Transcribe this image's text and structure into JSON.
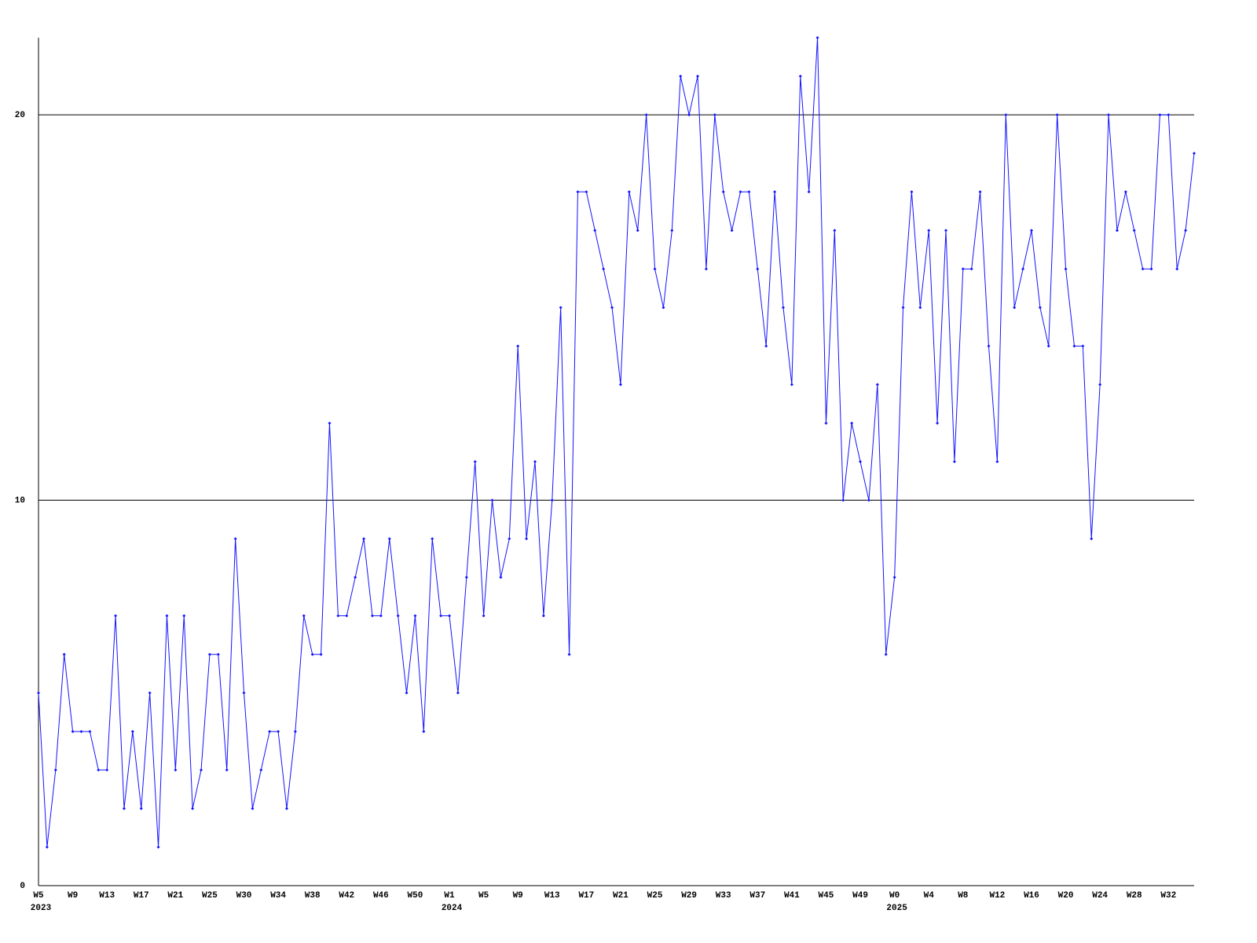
{
  "chart_data": {
    "type": "line",
    "color": "#1414ff",
    "ylim": [
      0,
      22
    ],
    "yticks": [
      0,
      10,
      20
    ],
    "grid": true,
    "categories": [
      "W5",
      null,
      null,
      null,
      "W9",
      null,
      null,
      null,
      "W13",
      null,
      null,
      null,
      "W17",
      null,
      null,
      null,
      "W21",
      null,
      null,
      null,
      "W25",
      null,
      null,
      null,
      "W30",
      null,
      null,
      null,
      "W34",
      null,
      null,
      null,
      "W38",
      null,
      null,
      null,
      "W42",
      null,
      null,
      null,
      "W46",
      null,
      null,
      null,
      "W50",
      null,
      null,
      null,
      "W1",
      null,
      null,
      null,
      "W5",
      null,
      null,
      null,
      "W9",
      null,
      null,
      null,
      "W13",
      null,
      null,
      null,
      "W17",
      null,
      null,
      null,
      "W21",
      null,
      null,
      null,
      "W25",
      null,
      null,
      null,
      "W29",
      null,
      null,
      null,
      "W33",
      null,
      null,
      null,
      "W37",
      null,
      null,
      null,
      "W41",
      null,
      null,
      null,
      "W45",
      null,
      null,
      null,
      "W49",
      null,
      null,
      null,
      "W0",
      null,
      null,
      null,
      "W4",
      null,
      null,
      null,
      "W8",
      null,
      null,
      null,
      "W12",
      null,
      null,
      null,
      "W16",
      null,
      null,
      null,
      "W20",
      null,
      null,
      null,
      "W24",
      null,
      null,
      null,
      "W28",
      null,
      null,
      null,
      "W32",
      null,
      null,
      null
    ],
    "category_years": [
      "2023",
      null,
      null,
      null,
      null,
      null,
      null,
      null,
      null,
      null,
      null,
      null,
      null,
      null,
      null,
      null,
      null,
      null,
      null,
      null,
      null,
      null,
      null,
      null,
      null,
      null,
      null,
      null,
      null,
      null,
      null,
      null,
      null,
      null,
      null,
      null,
      null,
      null,
      null,
      null,
      null,
      null,
      null,
      null,
      null,
      null,
      null,
      null,
      "2024",
      null,
      null,
      null,
      null,
      null,
      null,
      null,
      null,
      null,
      null,
      null,
      null,
      null,
      null,
      null,
      null,
      null,
      null,
      null,
      null,
      null,
      null,
      null,
      null,
      null,
      null,
      null,
      null,
      null,
      null,
      null,
      null,
      null,
      null,
      null,
      null,
      null,
      null,
      null,
      null,
      null,
      null,
      null,
      null,
      null,
      null,
      null,
      null,
      null,
      null,
      null,
      "2025",
      null,
      null,
      null,
      null,
      null,
      null,
      null,
      null,
      null,
      null,
      null,
      null,
      null,
      null,
      null,
      null,
      null,
      null,
      null,
      null,
      null,
      null,
      null,
      null,
      null,
      null,
      null,
      null,
      null,
      null,
      null,
      null,
      null,
      null,
      null
    ],
    "values": [
      5,
      1,
      3,
      6,
      4,
      4,
      4,
      3,
      3,
      7,
      2,
      4,
      2,
      5,
      1,
      7,
      3,
      7,
      2,
      3,
      6,
      6,
      3,
      9,
      5,
      2,
      3,
      4,
      4,
      2,
      4,
      7,
      6,
      6,
      12,
      7,
      7,
      8,
      9,
      7,
      7,
      9,
      7,
      5,
      7,
      4,
      9,
      7,
      7,
      5,
      8,
      11,
      7,
      10,
      8,
      9,
      14,
      9,
      11,
      7,
      10,
      15,
      6,
      18,
      18,
      17,
      16,
      15,
      13,
      18,
      17,
      20,
      16,
      15,
      17,
      21,
      20,
      21,
      16,
      20,
      18,
      17,
      18,
      18,
      16,
      14,
      18,
      15,
      13,
      21,
      18,
      22,
      12,
      17,
      10,
      12,
      11,
      10,
      13,
      6,
      8,
      15,
      18,
      15,
      17,
      12,
      17,
      11,
      16,
      16,
      18,
      14,
      11,
      20,
      15,
      16,
      17,
      15,
      14,
      20,
      16,
      14,
      14,
      9,
      13,
      20,
      17,
      18,
      17,
      16,
      16,
      20,
      20,
      16,
      17,
      19
    ]
  }
}
